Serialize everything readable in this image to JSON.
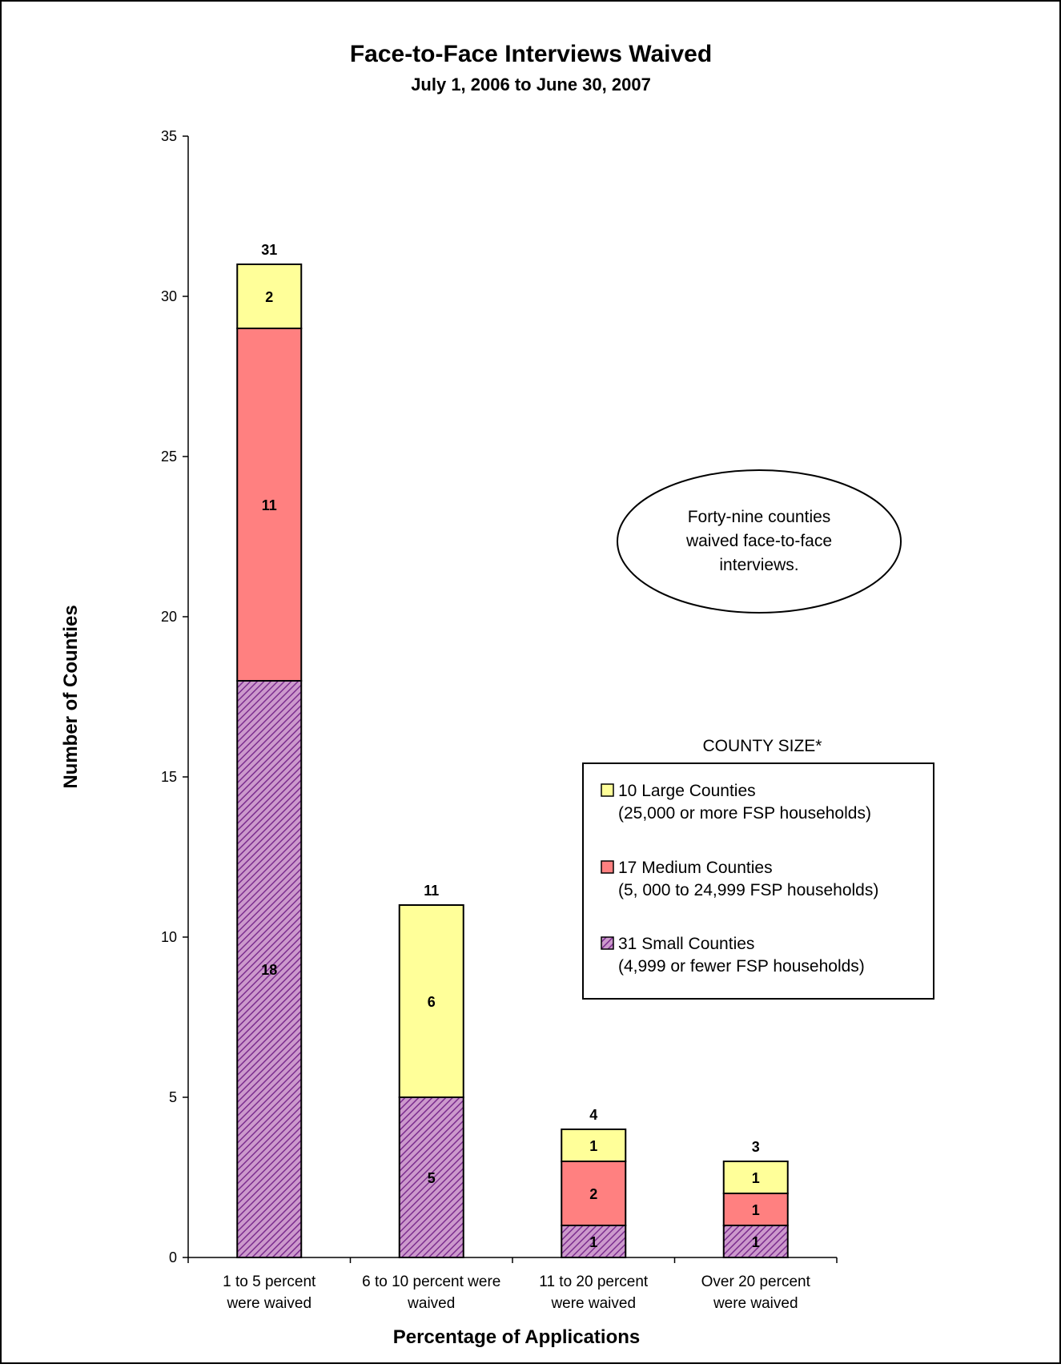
{
  "colors": {
    "small": "#cc99cc",
    "small_hatch": "#7b2d8e",
    "medium": "#ff8080",
    "large": "#ffff99",
    "line": "#000000"
  },
  "chart_data": {
    "type": "bar",
    "stacked": true,
    "title": "Face-to-Face Interviews Waived",
    "subtitle": "July 1, 2006 to June 30, 2007",
    "xlabel": "Percentage of Applications",
    "ylabel": "Number of Counties",
    "ylim": [
      0,
      35
    ],
    "yticks": [
      0,
      5,
      10,
      15,
      20,
      25,
      30,
      35
    ],
    "categories": [
      [
        "1 to 5 percent",
        "were waived"
      ],
      [
        "6 to 10 percent were",
        "waived"
      ],
      [
        "11 to 20 percent",
        "were waived"
      ],
      [
        "Over 20 percent",
        "were waived"
      ]
    ],
    "series": [
      {
        "key": "small",
        "name": "31 Small Counties",
        "detail": "(4,999 or fewer FSP households)",
        "values": [
          18,
          5,
          1,
          1
        ]
      },
      {
        "key": "medium",
        "name": "17 Medium Counties",
        "detail": "(5, 000 to 24,999 FSP households)",
        "values": [
          11,
          0,
          2,
          1
        ]
      },
      {
        "key": "large",
        "name": "10 Large Counties",
        "detail": "(25,000 or more FSP households)",
        "values": [
          2,
          6,
          1,
          1
        ]
      }
    ],
    "totals": [
      31,
      11,
      4,
      3
    ],
    "legend": {
      "title": "COUNTY SIZE*",
      "position": "right"
    },
    "annotation": [
      "Forty-nine counties",
      "waived face-to-face",
      "interviews."
    ],
    "grid": false
  }
}
